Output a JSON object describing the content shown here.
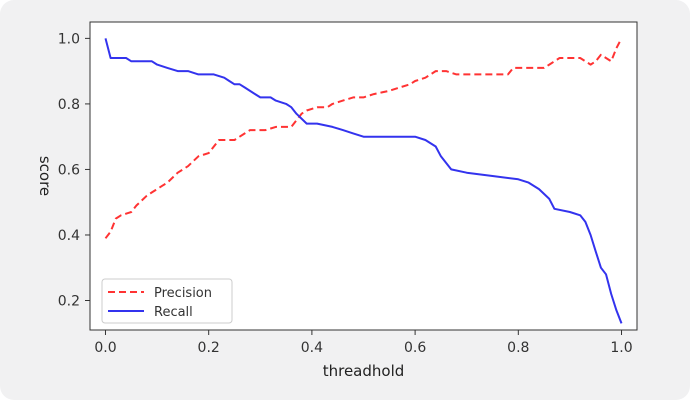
{
  "chart_data": {
    "type": "line",
    "title": "",
    "xlabel": "threadhold",
    "ylabel": "score",
    "xlim": [
      -0.03,
      1.03
    ],
    "ylim": [
      0.11,
      1.05
    ],
    "xticks": [
      0.0,
      0.2,
      0.4,
      0.6,
      0.8,
      1.0
    ],
    "xtick_labels": [
      "0.0",
      "0.2",
      "0.4",
      "0.6",
      "0.8",
      "1.0"
    ],
    "yticks": [
      0.2,
      0.4,
      0.6,
      0.8,
      1.0
    ],
    "ytick_labels": [
      "0.2",
      "0.4",
      "0.6",
      "0.8",
      "1.0"
    ],
    "grid": false,
    "legend_position": "lower-left",
    "series": [
      {
        "name": "Precision",
        "color": "#ff3333",
        "style": "dashed",
        "points": [
          [
            0.0,
            0.39
          ],
          [
            0.01,
            0.41
          ],
          [
            0.02,
            0.45
          ],
          [
            0.03,
            0.46
          ],
          [
            0.05,
            0.47
          ],
          [
            0.06,
            0.49
          ],
          [
            0.08,
            0.52
          ],
          [
            0.09,
            0.53
          ],
          [
            0.1,
            0.54
          ],
          [
            0.11,
            0.55
          ],
          [
            0.12,
            0.56
          ],
          [
            0.14,
            0.59
          ],
          [
            0.16,
            0.61
          ],
          [
            0.18,
            0.64
          ],
          [
            0.2,
            0.65
          ],
          [
            0.22,
            0.69
          ],
          [
            0.24,
            0.69
          ],
          [
            0.25,
            0.69
          ],
          [
            0.27,
            0.71
          ],
          [
            0.28,
            0.72
          ],
          [
            0.3,
            0.72
          ],
          [
            0.31,
            0.72
          ],
          [
            0.33,
            0.73
          ],
          [
            0.34,
            0.73
          ],
          [
            0.36,
            0.73
          ],
          [
            0.37,
            0.75
          ],
          [
            0.38,
            0.77
          ],
          [
            0.39,
            0.78
          ],
          [
            0.41,
            0.79
          ],
          [
            0.43,
            0.79
          ],
          [
            0.44,
            0.8
          ],
          [
            0.46,
            0.81
          ],
          [
            0.48,
            0.82
          ],
          [
            0.5,
            0.82
          ],
          [
            0.52,
            0.83
          ],
          [
            0.55,
            0.84
          ],
          [
            0.57,
            0.85
          ],
          [
            0.59,
            0.86
          ],
          [
            0.6,
            0.87
          ],
          [
            0.62,
            0.88
          ],
          [
            0.63,
            0.89
          ],
          [
            0.64,
            0.9
          ],
          [
            0.66,
            0.9
          ],
          [
            0.68,
            0.89
          ],
          [
            0.7,
            0.89
          ],
          [
            0.72,
            0.89
          ],
          [
            0.74,
            0.89
          ],
          [
            0.76,
            0.89
          ],
          [
            0.78,
            0.89
          ],
          [
            0.79,
            0.91
          ],
          [
            0.81,
            0.91
          ],
          [
            0.83,
            0.91
          ],
          [
            0.85,
            0.91
          ],
          [
            0.86,
            0.92
          ],
          [
            0.87,
            0.93
          ],
          [
            0.88,
            0.94
          ],
          [
            0.9,
            0.94
          ],
          [
            0.92,
            0.94
          ],
          [
            0.93,
            0.93
          ],
          [
            0.94,
            0.92
          ],
          [
            0.95,
            0.93
          ],
          [
            0.96,
            0.95
          ],
          [
            0.97,
            0.94
          ],
          [
            0.98,
            0.93
          ],
          [
            0.99,
            0.97
          ],
          [
            1.0,
            1.0
          ]
        ]
      },
      {
        "name": "Recall",
        "color": "#3333ee",
        "style": "solid",
        "points": [
          [
            0.0,
            1.0
          ],
          [
            0.01,
            0.94
          ],
          [
            0.04,
            0.94
          ],
          [
            0.05,
            0.93
          ],
          [
            0.07,
            0.93
          ],
          [
            0.09,
            0.93
          ],
          [
            0.1,
            0.92
          ],
          [
            0.12,
            0.91
          ],
          [
            0.14,
            0.9
          ],
          [
            0.16,
            0.9
          ],
          [
            0.18,
            0.89
          ],
          [
            0.21,
            0.89
          ],
          [
            0.23,
            0.88
          ],
          [
            0.24,
            0.87
          ],
          [
            0.25,
            0.86
          ],
          [
            0.26,
            0.86
          ],
          [
            0.27,
            0.85
          ],
          [
            0.29,
            0.83
          ],
          [
            0.3,
            0.82
          ],
          [
            0.32,
            0.82
          ],
          [
            0.33,
            0.81
          ],
          [
            0.35,
            0.8
          ],
          [
            0.36,
            0.79
          ],
          [
            0.37,
            0.77
          ],
          [
            0.39,
            0.74
          ],
          [
            0.41,
            0.74
          ],
          [
            0.44,
            0.73
          ],
          [
            0.46,
            0.72
          ],
          [
            0.48,
            0.71
          ],
          [
            0.5,
            0.7
          ],
          [
            0.54,
            0.7
          ],
          [
            0.58,
            0.7
          ],
          [
            0.6,
            0.7
          ],
          [
            0.62,
            0.69
          ],
          [
            0.64,
            0.67
          ],
          [
            0.65,
            0.64
          ],
          [
            0.66,
            0.62
          ],
          [
            0.67,
            0.6
          ],
          [
            0.7,
            0.59
          ],
          [
            0.75,
            0.58
          ],
          [
            0.8,
            0.57
          ],
          [
            0.82,
            0.56
          ],
          [
            0.84,
            0.54
          ],
          [
            0.86,
            0.51
          ],
          [
            0.87,
            0.48
          ],
          [
            0.9,
            0.47
          ],
          [
            0.92,
            0.46
          ],
          [
            0.93,
            0.44
          ],
          [
            0.94,
            0.4
          ],
          [
            0.95,
            0.35
          ],
          [
            0.96,
            0.3
          ],
          [
            0.97,
            0.28
          ],
          [
            0.98,
            0.22
          ],
          [
            0.99,
            0.17
          ],
          [
            1.0,
            0.13
          ]
        ]
      }
    ]
  }
}
